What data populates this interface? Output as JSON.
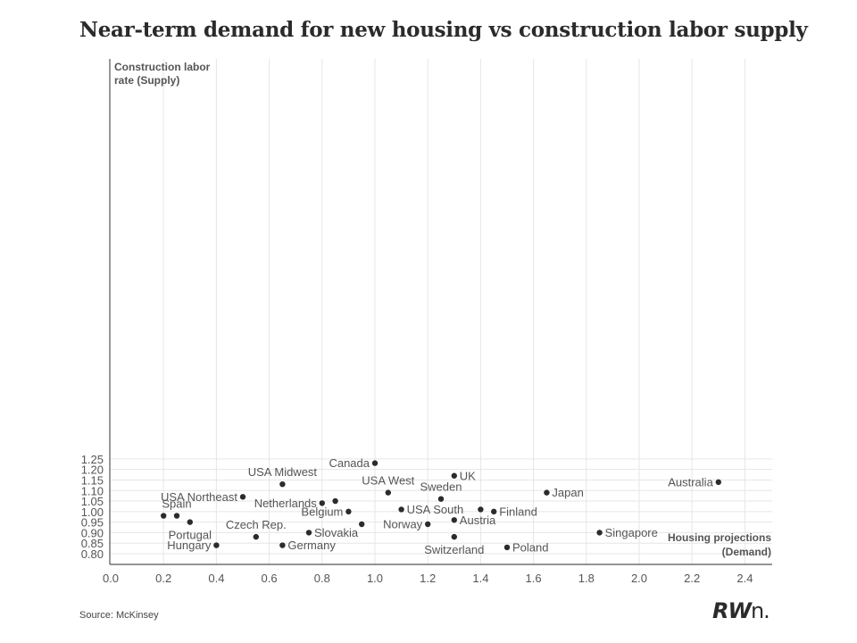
{
  "title": "Near-term demand for new housing vs construction labor supply",
  "source": "Source: McKinsey",
  "logo": {
    "main": "RW",
    "suffix": "n."
  },
  "colors": {
    "point": "#2b2b2b",
    "grid": "#e6e6e6",
    "axis": "#555555",
    "text": "#555555"
  },
  "chart_data": {
    "type": "scatter",
    "title": "Near-term demand for new housing vs construction labor supply",
    "xlabel": [
      "Housing projections",
      "(Demand)"
    ],
    "ylabel": [
      "Construction labor",
      "rate (Supply)"
    ],
    "xlim": [
      0.0,
      2.5
    ],
    "ylim": [
      0.78,
      1.26
    ],
    "xticks": [
      "0.0",
      "0.2",
      "0.4",
      "0.6",
      "0.8",
      "1.0",
      "1.2",
      "1.4",
      "1.6",
      "1.8",
      "2.0",
      "2.2",
      "2.4"
    ],
    "yticks": [
      "0.80",
      "0.85",
      "0.90",
      "0.95",
      "1.00",
      "1.05",
      "1.10",
      "1.15",
      "1.20",
      "1.25"
    ],
    "grid": true,
    "points": [
      {
        "label": "Canada",
        "x": 1.0,
        "y": 1.23,
        "pos": "left"
      },
      {
        "label": "UK",
        "x": 1.3,
        "y": 1.17,
        "pos": "right"
      },
      {
        "label": "Australia",
        "x": 2.3,
        "y": 1.14,
        "pos": "left"
      },
      {
        "label": "USA Midwest",
        "x": 0.65,
        "y": 1.13,
        "pos": "above"
      },
      {
        "label": "USA West",
        "x": 1.05,
        "y": 1.09,
        "pos": "above"
      },
      {
        "label": "Japan",
        "x": 1.65,
        "y": 1.09,
        "pos": "right"
      },
      {
        "label": "USA Northeast",
        "x": 0.5,
        "y": 1.07,
        "pos": "left"
      },
      {
        "label": "Sweden",
        "x": 1.25,
        "y": 1.06,
        "pos": "above"
      },
      {
        "label": "",
        "x": 0.85,
        "y": 1.05,
        "pos": "none"
      },
      {
        "label": "Netherlands",
        "x": 0.8,
        "y": 1.04,
        "pos": "left"
      },
      {
        "label": "USA South",
        "x": 1.1,
        "y": 1.01,
        "pos": "right"
      },
      {
        "label": "",
        "x": 1.4,
        "y": 1.01,
        "pos": "none"
      },
      {
        "label": "Belgium",
        "x": 0.9,
        "y": 1.0,
        "pos": "left"
      },
      {
        "label": "Finland",
        "x": 1.45,
        "y": 1.0,
        "pos": "right"
      },
      {
        "label": "",
        "x": 0.2,
        "y": 0.98,
        "pos": "none"
      },
      {
        "label": "Spain",
        "x": 0.25,
        "y": 0.98,
        "pos": "above"
      },
      {
        "label": "Austria",
        "x": 1.3,
        "y": 0.96,
        "pos": "right"
      },
      {
        "label": "Portugal",
        "x": 0.3,
        "y": 0.95,
        "pos": "below"
      },
      {
        "label": "",
        "x": 0.95,
        "y": 0.94,
        "pos": "none"
      },
      {
        "label": "Norway",
        "x": 1.2,
        "y": 0.94,
        "pos": "left"
      },
      {
        "label": "Slovakia",
        "x": 0.75,
        "y": 0.9,
        "pos": "right"
      },
      {
        "label": "Singapore",
        "x": 1.85,
        "y": 0.9,
        "pos": "right"
      },
      {
        "label": "Czech Rep.",
        "x": 0.55,
        "y": 0.88,
        "pos": "above"
      },
      {
        "label": "Switzerland",
        "x": 1.3,
        "y": 0.88,
        "pos": "below"
      },
      {
        "label": "Hungary",
        "x": 0.4,
        "y": 0.84,
        "pos": "left"
      },
      {
        "label": "Germany",
        "x": 0.65,
        "y": 0.84,
        "pos": "right"
      },
      {
        "label": "Poland",
        "x": 1.5,
        "y": 0.83,
        "pos": "right"
      }
    ]
  }
}
